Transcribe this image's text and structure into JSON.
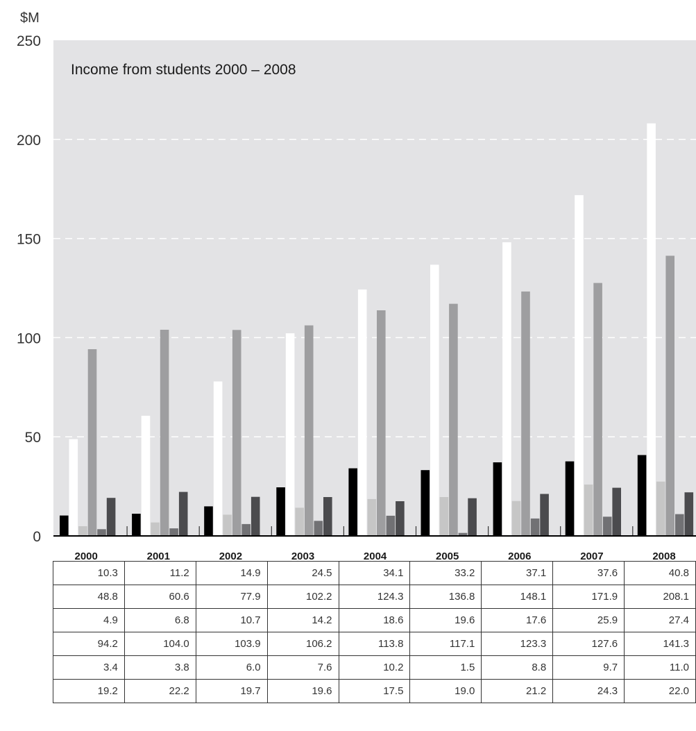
{
  "chart_data": {
    "type": "bar",
    "title": "Income from students 2000 – 2008",
    "ylabel": "$M",
    "xlabel": "",
    "ylim": [
      0,
      250
    ],
    "yticks": [
      0,
      50,
      100,
      150,
      200,
      250
    ],
    "grid": true,
    "categories": [
      "2000",
      "2001",
      "2002",
      "2003",
      "2004",
      "2005",
      "2006",
      "2007",
      "2008"
    ],
    "series": [
      {
        "color": "#000000",
        "values": [
          10.3,
          11.2,
          14.9,
          24.5,
          34.1,
          33.2,
          37.1,
          37.6,
          40.8
        ]
      },
      {
        "color": "#ffffff",
        "values": [
          48.8,
          60.6,
          77.9,
          102.2,
          124.3,
          136.8,
          148.1,
          171.9,
          208.1
        ]
      },
      {
        "color": "#c6c6c6",
        "values": [
          4.9,
          6.8,
          10.7,
          14.2,
          18.6,
          19.6,
          17.6,
          25.9,
          27.4
        ]
      },
      {
        "color": "#9e9ea0",
        "values": [
          94.2,
          104.0,
          103.9,
          106.2,
          113.8,
          117.1,
          123.3,
          127.6,
          141.3
        ]
      },
      {
        "color": "#717174",
        "values": [
          3.4,
          3.8,
          6.0,
          7.6,
          10.2,
          1.5,
          8.8,
          9.7,
          11.0
        ]
      },
      {
        "color": "#4b4b4e",
        "values": [
          19.2,
          22.2,
          19.7,
          19.6,
          17.5,
          19.0,
          21.2,
          24.3,
          22.0
        ]
      }
    ],
    "table": [
      [
        "10.3",
        "11.2",
        "14.9",
        "24.5",
        "34.1",
        "33.2",
        "37.1",
        "37.6",
        "40.8"
      ],
      [
        "48.8",
        "60.6",
        "77.9",
        "102.2",
        "124.3",
        "136.8",
        "148.1",
        "171.9",
        "208.1"
      ],
      [
        "4.9",
        "6.8",
        "10.7",
        "14.2",
        "18.6",
        "19.6",
        "17.6",
        "25.9",
        "27.4"
      ],
      [
        "94.2",
        "104.0",
        "103.9",
        "106.2",
        "113.8",
        "117.1",
        "123.3",
        "127.6",
        "141.3"
      ],
      [
        "3.4",
        "3.8",
        "6.0",
        "7.6",
        "10.2",
        "1.5",
        "8.8",
        "9.7",
        "11.0"
      ],
      [
        "19.2",
        "22.2",
        "19.7",
        "19.6",
        "17.5",
        "19.0",
        "21.2",
        "24.3",
        "22.0"
      ]
    ],
    "colors": {
      "plot_background": "#e3e3e5",
      "gridline": "#ffffff",
      "axis": "#000000"
    }
  }
}
